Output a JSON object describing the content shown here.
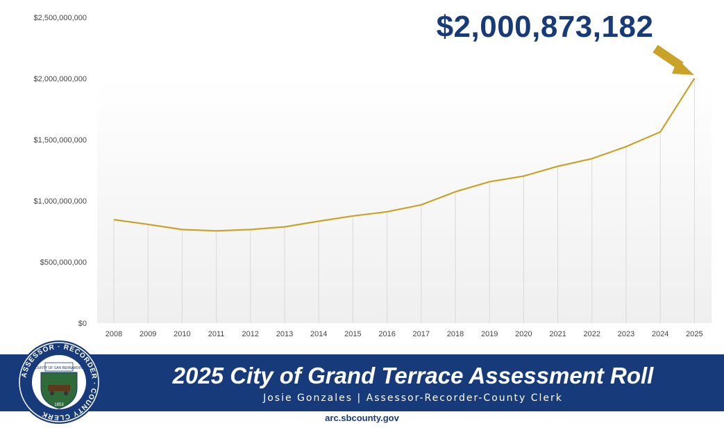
{
  "colors": {
    "navy": "#173a7a",
    "gold": "#c9a227",
    "grid": "#d9d9d9",
    "seal_green": "#2f6b3a",
    "seal_white": "#ffffff"
  },
  "callout": {
    "value_label": "$2,000,873,182"
  },
  "banner": {
    "title": "2025 City of Grand Terrace Assessment Roll",
    "subtitle": "Josie Gonzales | Assessor-Recorder-County Clerk"
  },
  "footer": {
    "url": "arc.sbcounty.gov"
  },
  "seal": {
    "ring_text": "ASSESSOR · RECORDER · COUNTY CLERK",
    "center_text": "COUNTY OF SAN BERNARDINO",
    "year": "1853"
  },
  "chart_data": {
    "type": "line",
    "categories": [
      "2008",
      "2009",
      "2010",
      "2011",
      "2012",
      "2013",
      "2014",
      "2015",
      "2016",
      "2017",
      "2018",
      "2019",
      "2020",
      "2021",
      "2022",
      "2023",
      "2024",
      "2025"
    ],
    "series": [
      {
        "values": [
          846000000,
          807000000,
          765000000,
          754000000,
          765000000,
          787000000,
          833000000,
          876000000,
          910000000,
          967000000,
          1074000000,
          1156000000,
          1202000000,
          1282000000,
          1345000000,
          1443000000,
          1563000000,
          2000873182
        ],
        "color": "#c9a227"
      }
    ],
    "ylim": [
      0,
      2500000000
    ],
    "ytick_values": [
      0,
      500000000,
      1000000000,
      1500000000,
      2000000000,
      2500000000
    ],
    "ytick_labels": [
      "$0",
      "$500,000,000",
      "$1,000,000,000",
      "$1,500,000,000",
      "$2,000,000,000",
      "$2,500,000,000"
    ],
    "grid": "vertical",
    "title": "",
    "xlabel": "",
    "ylabel": ""
  }
}
